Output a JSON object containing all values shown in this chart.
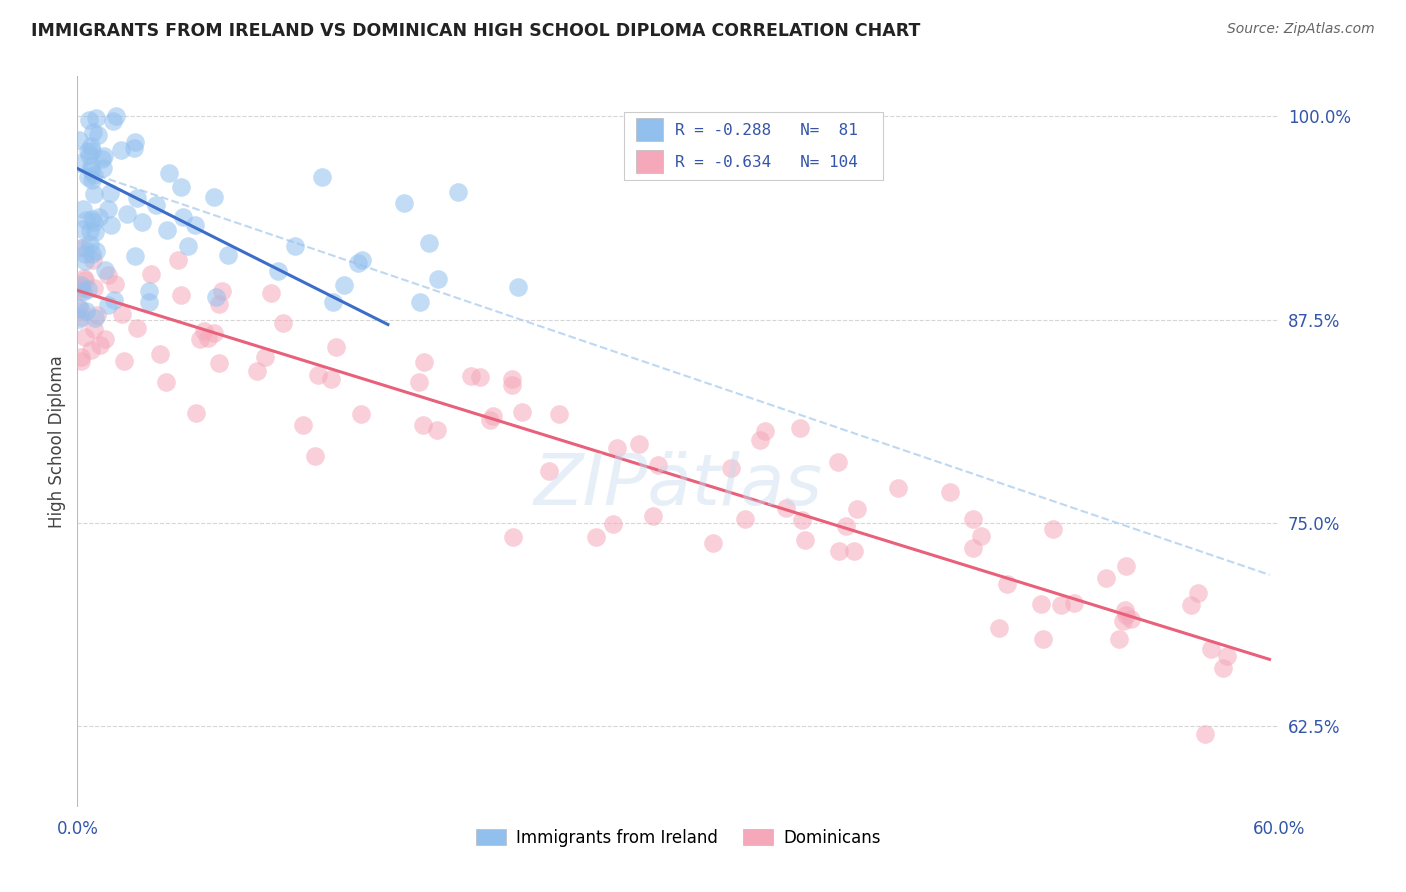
{
  "title": "IMMIGRANTS FROM IRELAND VS DOMINICAN HIGH SCHOOL DIPLOMA CORRELATION CHART",
  "source": "Source: ZipAtlas.com",
  "ylabel": "High School Diploma",
  "ytick_labels": [
    "100.0%",
    "87.5%",
    "75.0%",
    "62.5%"
  ],
  "ytick_vals": [
    1.0,
    0.875,
    0.75,
    0.625
  ],
  "legend_blue_r": "-0.288",
  "legend_blue_n": "81",
  "legend_pink_r": "-0.634",
  "legend_pink_n": "104",
  "blue_color": "#92C0EE",
  "pink_color": "#F5A8BA",
  "blue_line_color": "#3B6DC9",
  "pink_line_color": "#E8607A",
  "dashed_line_color": "#B8D4F0",
  "title_color": "#222222",
  "source_color": "#666666",
  "axis_label_color": "#3355AA",
  "background_color": "#FFFFFF",
  "grid_color": "#CCCCCC",
  "xlim": [
    0.0,
    0.6
  ],
  "ylim": [
    0.575,
    1.025
  ],
  "blue_line_x": [
    0.0,
    0.155
  ],
  "blue_line_y": [
    0.968,
    0.872
  ],
  "pink_line_x": [
    0.0,
    0.595
  ],
  "pink_line_y": [
    0.893,
    0.666
  ],
  "dashed_line_x": [
    0.0,
    0.595
  ],
  "dashed_line_y": [
    0.968,
    0.718
  ]
}
